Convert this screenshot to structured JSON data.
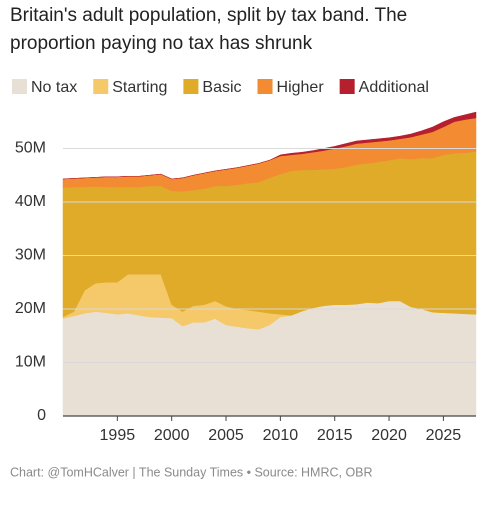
{
  "chart_data": {
    "type": "stacked-area",
    "title": "Britain's adult population, split by tax band. The proportion paying no tax has shrunk",
    "source": "Chart: @TomHCalver | The Sunday Times • Source: HMRC, OBR",
    "x": [
      1990,
      1991,
      1992,
      1993,
      1994,
      1995,
      1996,
      1997,
      1998,
      1999,
      2000,
      2001,
      2002,
      2003,
      2004,
      2005,
      2006,
      2007,
      2008,
      2009,
      2010,
      2011,
      2012,
      2013,
      2014,
      2015,
      2016,
      2017,
      2018,
      2019,
      2020,
      2021,
      2022,
      2023,
      2024,
      2025,
      2026,
      2027,
      2028
    ],
    "xlim": [
      1990,
      2028
    ],
    "xticks": [
      1995,
      2000,
      2005,
      2010,
      2015,
      2020,
      2025
    ],
    "ylim": [
      0,
      57
    ],
    "yticks": [
      0,
      {
        "value": 10,
        "label": "10M"
      },
      {
        "value": 20,
        "label": "20M"
      },
      {
        "value": 30,
        "label": "30M"
      },
      {
        "value": 40,
        "label": "40M"
      },
      {
        "value": 50,
        "label": "50M"
      }
    ],
    "grid": true,
    "legend": "top",
    "series": [
      {
        "name": "No tax",
        "color": "#e9e0d5",
        "values": [
          18.2,
          18.7,
          19.2,
          19.5,
          19.3,
          19,
          19.2,
          18.8,
          18.5,
          18.4,
          18.3,
          16.8,
          17.5,
          17.5,
          18.2,
          17,
          16.7,
          16.4,
          16.2,
          17,
          18.5,
          18.8,
          19.6,
          20.2,
          20.6,
          20.8,
          20.8,
          20.9,
          21.2,
          21.1,
          21.5,
          21.5,
          20.4,
          20,
          19.4,
          19.3,
          19.2,
          19.1,
          19
        ]
      },
      {
        "name": "Starting",
        "color": "#f5c86a",
        "values": [
          0.3,
          0.8,
          4.3,
          5.3,
          5.7,
          6,
          7.3,
          7.7,
          8,
          8.1,
          2.5,
          2.7,
          3.1,
          3.3,
          3.3,
          3.5,
          3.3,
          3.4,
          3.3,
          2.2,
          0.5,
          0,
          0,
          0,
          0,
          0,
          0,
          0,
          0,
          0,
          0,
          0,
          0,
          0,
          0,
          0,
          0,
          0,
          0
        ]
      },
      {
        "name": "Basic",
        "color": "#dfab29",
        "values": [
          24.2,
          23.3,
          19.3,
          18.1,
          17.8,
          17.8,
          16.3,
          16.3,
          16.5,
          16.5,
          21.3,
          22.5,
          21.6,
          21.7,
          21.5,
          22.5,
          23.2,
          23.7,
          24.2,
          25.3,
          26.2,
          27.0,
          26.4,
          25.8,
          25.5,
          25.4,
          25.7,
          26.1,
          26.0,
          26.4,
          26.3,
          26.7,
          27.6,
          28.2,
          28.8,
          29.5,
          29.9,
          30.1,
          30.4
        ]
      },
      {
        "name": "Higher",
        "color": "#f28b31",
        "values": [
          1.6,
          1.6,
          1.7,
          1.7,
          1.9,
          1.9,
          2.0,
          2.0,
          2.0,
          2.2,
          2.2,
          2.5,
          2.8,
          2.9,
          2.8,
          3.1,
          3.2,
          3.3,
          3.5,
          3.3,
          3.4,
          3.0,
          3.0,
          3.3,
          3.5,
          3.8,
          3.9,
          3.9,
          3.9,
          3.8,
          3.7,
          3.6,
          4.1,
          4.4,
          4.9,
          5.2,
          5.9,
          6.2,
          6.3
        ]
      },
      {
        "name": "Additional",
        "color": "#b51f2e",
        "values": [
          0,
          0,
          0,
          0,
          0,
          0,
          0,
          0,
          0,
          0,
          0,
          0,
          0,
          0,
          0,
          0,
          0,
          0,
          0,
          0,
          0.2,
          0.3,
          0.3,
          0.3,
          0.4,
          0.4,
          0.5,
          0.5,
          0.5,
          0.5,
          0.5,
          0.5,
          0.6,
          0.7,
          0.9,
          1.0,
          0.8,
          0.9,
          1.1
        ]
      }
    ]
  }
}
